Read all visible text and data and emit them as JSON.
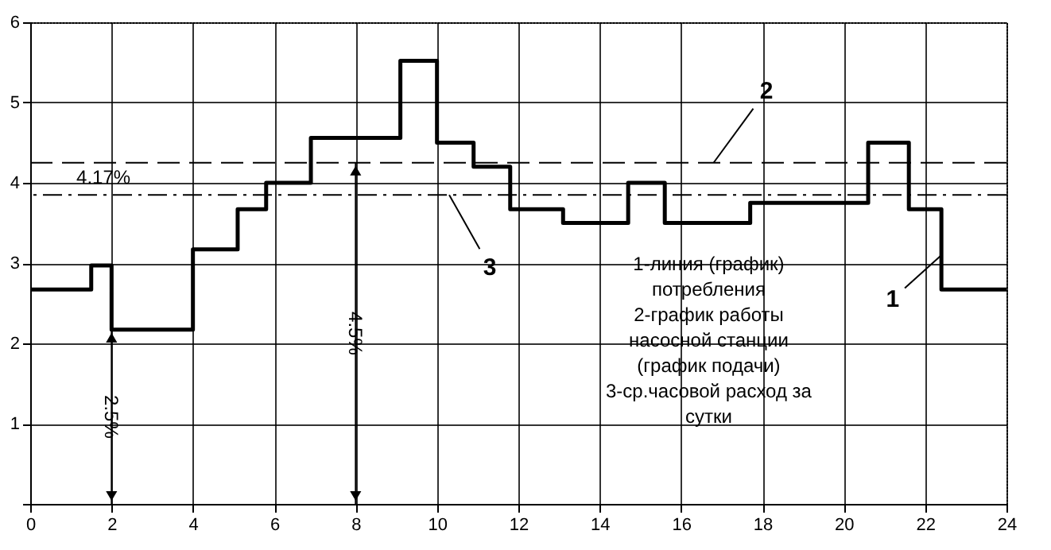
{
  "chart_data": {
    "type": "step",
    "x": [
      0,
      1.5,
      2,
      4,
      5.1,
      5.8,
      6.9,
      9.1,
      10,
      10.9,
      11.8,
      13.1,
      14.7,
      15.6,
      17.7,
      20.6,
      21.6,
      22.4,
      24
    ],
    "series": [
      {
        "color": "#000000",
        "values": [
          2.67,
          2.97,
          2.17,
          3.17,
          3.67,
          4.0,
          4.56,
          5.52,
          4.5,
          4.2,
          3.67,
          3.5,
          4.0,
          3.5,
          3.75,
          4.5,
          3.67,
          2.67,
          2.67
        ]
      }
    ],
    "xlim": [
      0,
      24
    ],
    "xticks": [
      0,
      2,
      4,
      6,
      8,
      10,
      12,
      14,
      16,
      18,
      20,
      22,
      24
    ],
    "ylim": [
      0,
      6
    ],
    "yticks": [
      {
        "value": 0,
        "label": null
      },
      1,
      2,
      3,
      4,
      5,
      6
    ],
    "grid": true,
    "marker": "none",
    "line_style": "solid",
    "ref_lines": [
      {
        "axis": "y",
        "value": 4.25,
        "line_style": "dashed",
        "color": "#000000"
      },
      {
        "axis": "y",
        "value": 3.85,
        "line_style": "dashdot",
        "color": "#000000"
      }
    ],
    "annotations": [
      {
        "text": "4.17%",
        "x": 1.8,
        "y": 4.25
      },
      "2.5%",
      "4.5%",
      {
        "text": "1",
        "x": 22.4,
        "y": 3.1
      },
      {
        "text": "2",
        "x": 16.8,
        "y": 4.25
      },
      {
        "text": "3",
        "x": 10.3,
        "y": 3.85
      },
      "1-линия (график)\nпотребления\n2-график работы\nнасосной станции\n(график подачи)\n3-ср.часовой расход за\nсутки"
    ]
  }
}
